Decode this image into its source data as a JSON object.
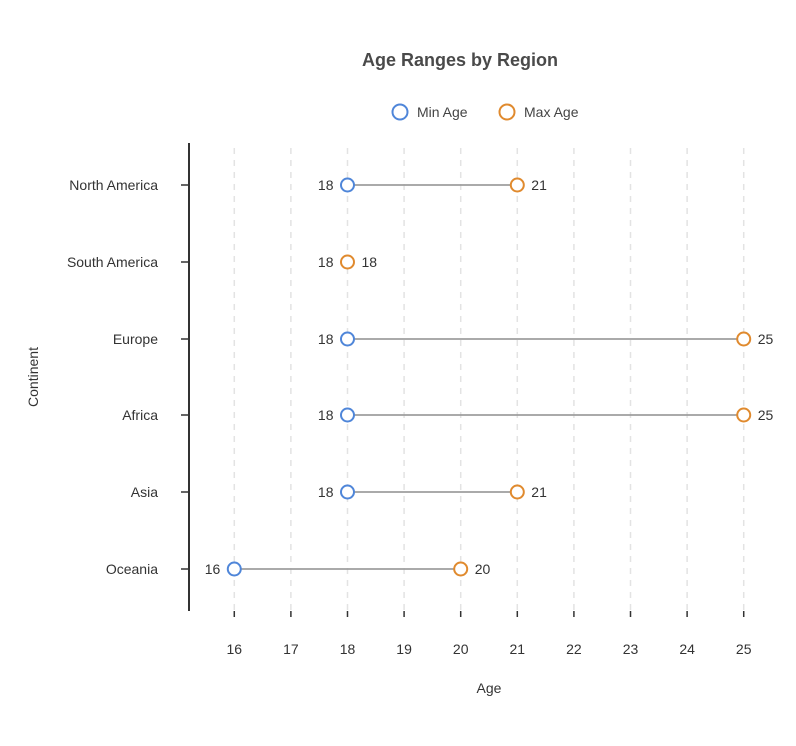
{
  "chart_data": {
    "type": "dumbbell",
    "title": "Age Ranges by Region",
    "xlabel": "Age",
    "ylabel": "Continent",
    "xlim": [
      15.2,
      25.8
    ],
    "xticks": [
      16,
      17,
      18,
      19,
      20,
      21,
      22,
      23,
      24,
      25
    ],
    "categories": [
      "North America",
      "South America",
      "Europe",
      "Africa",
      "Asia",
      "Oceania"
    ],
    "series": [
      {
        "name": "Min Age",
        "color": "#4f86d9",
        "values": [
          18,
          18,
          18,
          18,
          18,
          16
        ]
      },
      {
        "name": "Max Age",
        "color": "#e08a2e",
        "values": [
          21,
          18,
          25,
          25,
          21,
          20
        ]
      }
    ],
    "connector_color": "#9e9e9e",
    "grid": "vertical dashed",
    "legend_position": "top-center"
  }
}
